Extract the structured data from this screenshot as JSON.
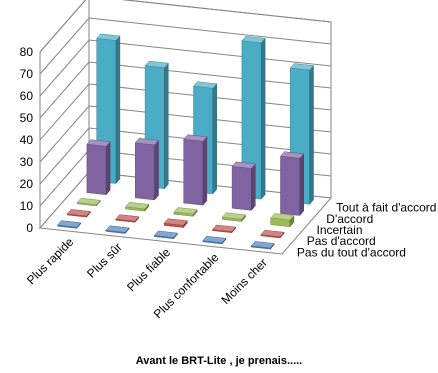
{
  "chart_data": {
    "type": "bar",
    "subtype": "3d-column",
    "categories": [
      "Plus rapide",
      "Plus sûr",
      "Plus fiable",
      "Plus confortable",
      "Moins cher"
    ],
    "series": [
      {
        "name": "Pas du tout d'accord",
        "values": [
          0,
          0,
          0,
          0,
          0
        ],
        "color": "#4f81bd"
      },
      {
        "name": "Pas d'accord",
        "values": [
          0,
          0,
          1,
          0,
          0
        ],
        "color": "#c0504d"
      },
      {
        "name": "Incertain",
        "values": [
          0,
          1,
          1,
          1,
          3
        ],
        "color": "#9bbb59"
      },
      {
        "name": "D'accord",
        "values": [
          22,
          25,
          29,
          19,
          26
        ],
        "color": "#8064a2"
      },
      {
        "name": "Tout à fait d'accord",
        "values": [
          65,
          55,
          48,
          71,
          61
        ],
        "color": "#4bacc6"
      }
    ],
    "y_ticks": [
      "0",
      "10",
      "20",
      "30",
      "40",
      "50",
      "60",
      "70",
      "80"
    ],
    "ylim": [
      0,
      80
    ],
    "grid": true,
    "legend": "series-axis-labels"
  },
  "caption": "Avant le BRT-Lite , je prenais....."
}
